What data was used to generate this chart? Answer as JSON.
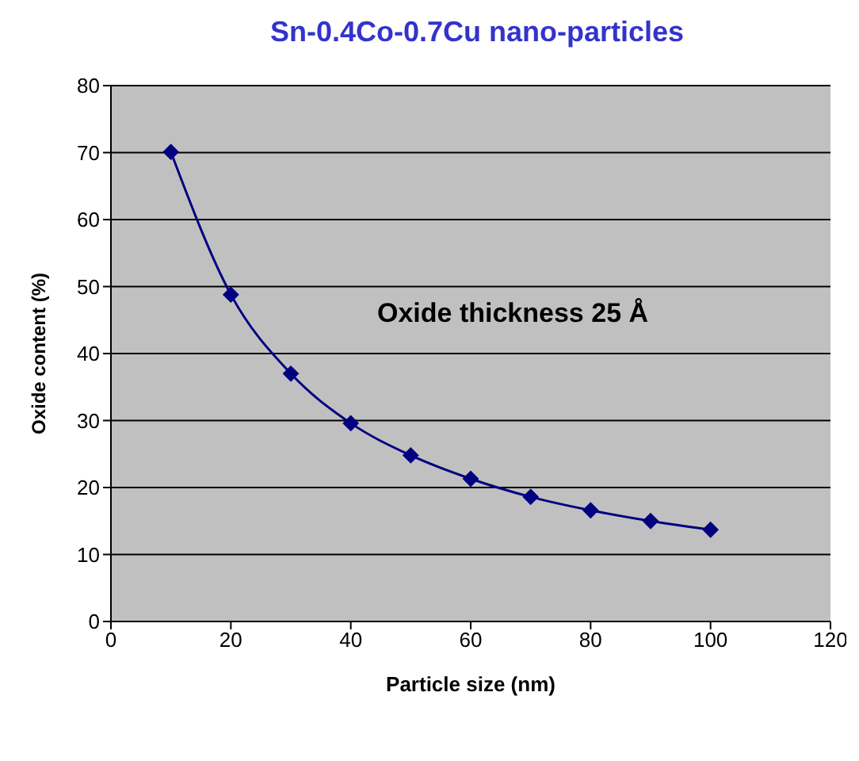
{
  "chart_data": {
    "type": "line",
    "title": "Sn-0.4Co-0.7Cu nano-particles",
    "xlabel": "Particle size (nm)",
    "ylabel": "Oxide content (%)",
    "annotations": [
      "Oxide thickness 25 Å"
    ],
    "x": [
      10,
      20,
      30,
      40,
      50,
      60,
      70,
      80,
      90,
      100
    ],
    "series": [
      {
        "color": "#000080",
        "values": [
          70.1,
          48.8,
          37.0,
          29.6,
          24.8,
          21.3,
          18.6,
          16.6,
          15.0,
          13.7
        ]
      }
    ],
    "xlim": [
      0,
      120
    ],
    "xticks": [
      0,
      20,
      40,
      60,
      80,
      100,
      120
    ],
    "ylim": [
      0,
      80
    ],
    "yticks": [
      0,
      10,
      20,
      30,
      40,
      50,
      60,
      70,
      80
    ],
    "grid": "y",
    "legend": false,
    "marker": "diamond",
    "line_style": "solid"
  }
}
